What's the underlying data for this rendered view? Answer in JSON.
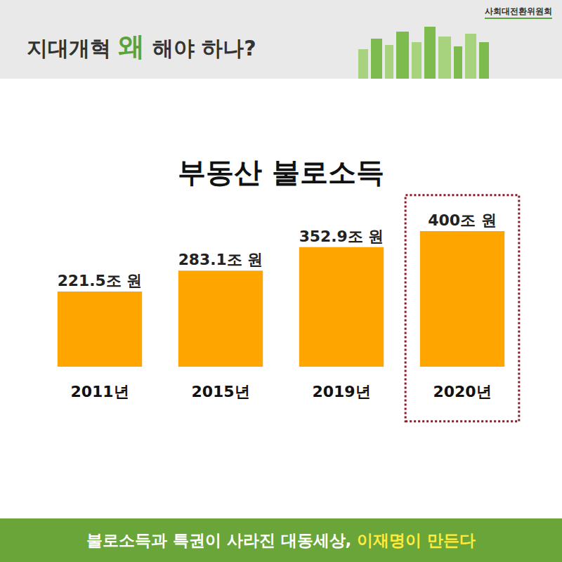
{
  "header": {
    "title": [
      "지대개혁 ",
      "왜",
      " 해야 하나?"
    ],
    "logo": "사회대전환위원회"
  },
  "chart_data": {
    "type": "bar",
    "title": "부동산 불로소득",
    "categories": [
      "2011년",
      "2015년",
      "2019년",
      "2020년"
    ],
    "values": [
      221.5,
      283.1,
      352.9,
      400
    ],
    "value_labels": [
      "221.5조 원",
      "283.1조 원",
      "352.9조 원",
      "400조 원"
    ],
    "color": "#ffa500",
    "data_labels": true,
    "tick_labels": "x",
    "ylim": [
      0,
      460
    ],
    "grid": false
  },
  "footer": {
    "text": [
      "불로소득과 특권이 사라진 대동세상, ",
      "이재명이 만든다"
    ]
  }
}
